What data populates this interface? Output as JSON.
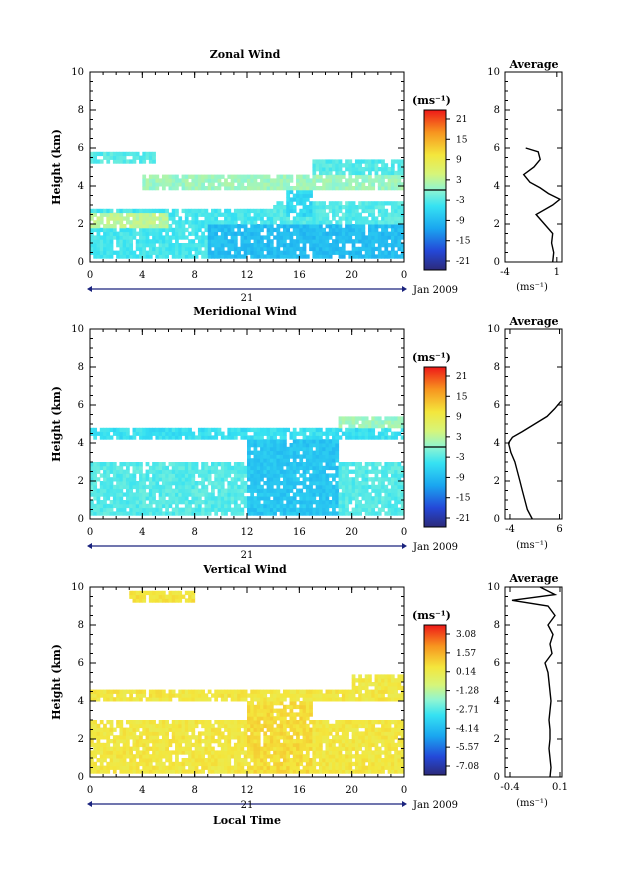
{
  "figure": {
    "xlabel": "Local Time",
    "ylabel": "Height (km)",
    "date_label": "Jan 2009",
    "day_label": "21",
    "colorbar_unit": "(ms⁻¹)",
    "avg_unit": "(ms⁻¹)"
  },
  "chart_data": [
    {
      "type": "heatmap",
      "title": "Zonal Wind",
      "xlabel": "",
      "ylabel": "Height (km)",
      "x_ticks": [
        "0",
        "4",
        "8",
        "12",
        "16",
        "20",
        "0"
      ],
      "x_range_hours": [
        0,
        24
      ],
      "y_ticks": [
        "0",
        "2",
        "4",
        "6",
        "8",
        "10"
      ],
      "ylim": [
        0,
        10
      ],
      "colorbar": {
        "label": "(ms⁻¹)",
        "ticks": [
          "21",
          "15",
          "9",
          "3",
          "-3",
          "-9",
          "-15",
          "-21"
        ],
        "range": [
          -24,
          24
        ],
        "zero_line": 0
      },
      "bands": [
        {
          "t0": 0.0,
          "t1": 24.0,
          "h0": 0.2,
          "h1": 2.8,
          "v": -4
        },
        {
          "t0": 0.0,
          "t1": 6.0,
          "h0": 1.8,
          "h1": 2.6,
          "v": 3
        },
        {
          "t0": 9.0,
          "t1": 24.0,
          "h0": 0.2,
          "h1": 2.0,
          "v": -9
        },
        {
          "t0": 14.0,
          "t1": 24.0,
          "h0": 2.0,
          "h1": 3.2,
          "v": -3
        },
        {
          "t0": 15.0,
          "t1": 17.0,
          "h0": 2.5,
          "h1": 4.6,
          "v": -6
        },
        {
          "t0": 4.0,
          "t1": 24.0,
          "h0": 3.8,
          "h1": 4.6,
          "v": 1
        },
        {
          "t0": 0.0,
          "t1": 5.0,
          "h0": 5.2,
          "h1": 5.8,
          "v": -3
        },
        {
          "t0": 17.0,
          "t1": 24.0,
          "h0": 4.6,
          "h1": 5.5,
          "v": -3
        }
      ],
      "average": {
        "xlim": [
          -4,
          1.5
        ],
        "x_ticks": [
          "-4",
          "1"
        ],
        "x_tick_values": [
          -4,
          1
        ],
        "height_km": [
          0.0,
          0.5,
          1.0,
          1.5,
          2.0,
          2.5,
          3.0,
          3.3,
          3.6,
          3.9,
          4.2,
          4.6,
          5.0,
          5.4,
          5.8,
          6.0
        ],
        "value": [
          0.6,
          0.7,
          0.5,
          0.6,
          -0.2,
          -1.0,
          0.6,
          1.3,
          0.2,
          -0.6,
          -1.6,
          -2.2,
          -1.2,
          -0.6,
          -0.8,
          -2.0
        ]
      }
    },
    {
      "type": "heatmap",
      "title": "Meridional Wind",
      "xlabel": "",
      "ylabel": "Height (km)",
      "x_ticks": [
        "0",
        "4",
        "8",
        "12",
        "16",
        "20",
        "0"
      ],
      "x_range_hours": [
        0,
        24
      ],
      "y_ticks": [
        "0",
        "2",
        "4",
        "6",
        "8",
        "10"
      ],
      "ylim": [
        0,
        10
      ],
      "colorbar": {
        "label": "(ms⁻¹)",
        "ticks": [
          "21",
          "15",
          "9",
          "3",
          "-3",
          "-9",
          "-15",
          "-21"
        ],
        "range": [
          -24,
          24
        ],
        "zero_line": 0
      },
      "bands": [
        {
          "t0": 0.0,
          "t1": 24.0,
          "h0": 0.2,
          "h1": 3.0,
          "v": -3
        },
        {
          "t0": 12.0,
          "t1": 19.0,
          "h0": 0.2,
          "h1": 4.6,
          "v": -8
        },
        {
          "t0": 0.0,
          "t1": 24.0,
          "h0": 4.3,
          "h1": 4.8,
          "v": -5
        },
        {
          "t0": 19.0,
          "t1": 24.0,
          "h0": 4.8,
          "h1": 5.4,
          "v": 1
        }
      ],
      "average": {
        "xlim": [
          -5,
          6.5
        ],
        "x_ticks": [
          "-4",
          "6"
        ],
        "x_tick_values": [
          -4,
          6
        ],
        "height_km": [
          0.0,
          0.5,
          1.0,
          1.5,
          2.0,
          2.5,
          3.0,
          3.5,
          4.0,
          4.3,
          4.6,
          5.0,
          5.4,
          5.8,
          6.2
        ],
        "value": [
          0.5,
          -0.5,
          -1.0,
          -1.5,
          -2.0,
          -2.5,
          -3.0,
          -3.8,
          -4.3,
          -3.5,
          -1.5,
          1.0,
          3.5,
          5.0,
          6.3
        ]
      }
    },
    {
      "type": "heatmap",
      "title": "Vertical Wind",
      "xlabel": "Local Time",
      "ylabel": "Height (km)",
      "x_ticks": [
        "0",
        "4",
        "8",
        "12",
        "16",
        "20",
        "0"
      ],
      "x_range_hours": [
        0,
        24
      ],
      "y_ticks": [
        "0",
        "2",
        "4",
        "6",
        "8",
        "10"
      ],
      "ylim": [
        0,
        10
      ],
      "colorbar": {
        "label": "(ms⁻¹)",
        "ticks": [
          "3.08",
          "1.57",
          "0.14",
          "-1.28",
          "-2.71",
          "-4.14",
          "-5.57",
          "-7.08"
        ],
        "range": [
          -7.7,
          3.7
        ]
      },
      "bands": [
        {
          "t0": 0.0,
          "t1": 24.0,
          "h0": 0.2,
          "h1": 3.0,
          "v": 0.4
        },
        {
          "t0": 12.0,
          "t1": 17.0,
          "h0": 0.2,
          "h1": 4.5,
          "v": 0.7
        },
        {
          "t0": 0.0,
          "t1": 24.0,
          "h0": 4.0,
          "h1": 4.6,
          "v": 0.4
        },
        {
          "t0": 20.0,
          "t1": 24.0,
          "h0": 4.6,
          "h1": 5.4,
          "v": 0.3
        },
        {
          "t0": 3.0,
          "t1": 8.0,
          "h0": 9.3,
          "h1": 9.9,
          "v": 0.5
        }
      ],
      "average": {
        "xlim": [
          -0.45,
          0.12
        ],
        "x_ticks": [
          "-0.4",
          "0.1"
        ],
        "x_tick_values": [
          -0.4,
          0.1
        ],
        "height_km": [
          0.0,
          0.5,
          1.0,
          1.5,
          2.0,
          2.5,
          3.0,
          3.5,
          4.0,
          4.5,
          5.0,
          5.5,
          6.0,
          6.5,
          7.0,
          7.5,
          8.0,
          8.5,
          9.0,
          9.3,
          9.6,
          10.0
        ],
        "value": [
          0.0,
          0.01,
          0.0,
          -0.01,
          0.0,
          0.0,
          -0.01,
          0.0,
          0.01,
          0.0,
          -0.01,
          -0.02,
          -0.05,
          0.02,
          0.0,
          0.03,
          -0.02,
          0.05,
          -0.02,
          -0.38,
          0.05,
          -0.1
        ]
      }
    }
  ]
}
